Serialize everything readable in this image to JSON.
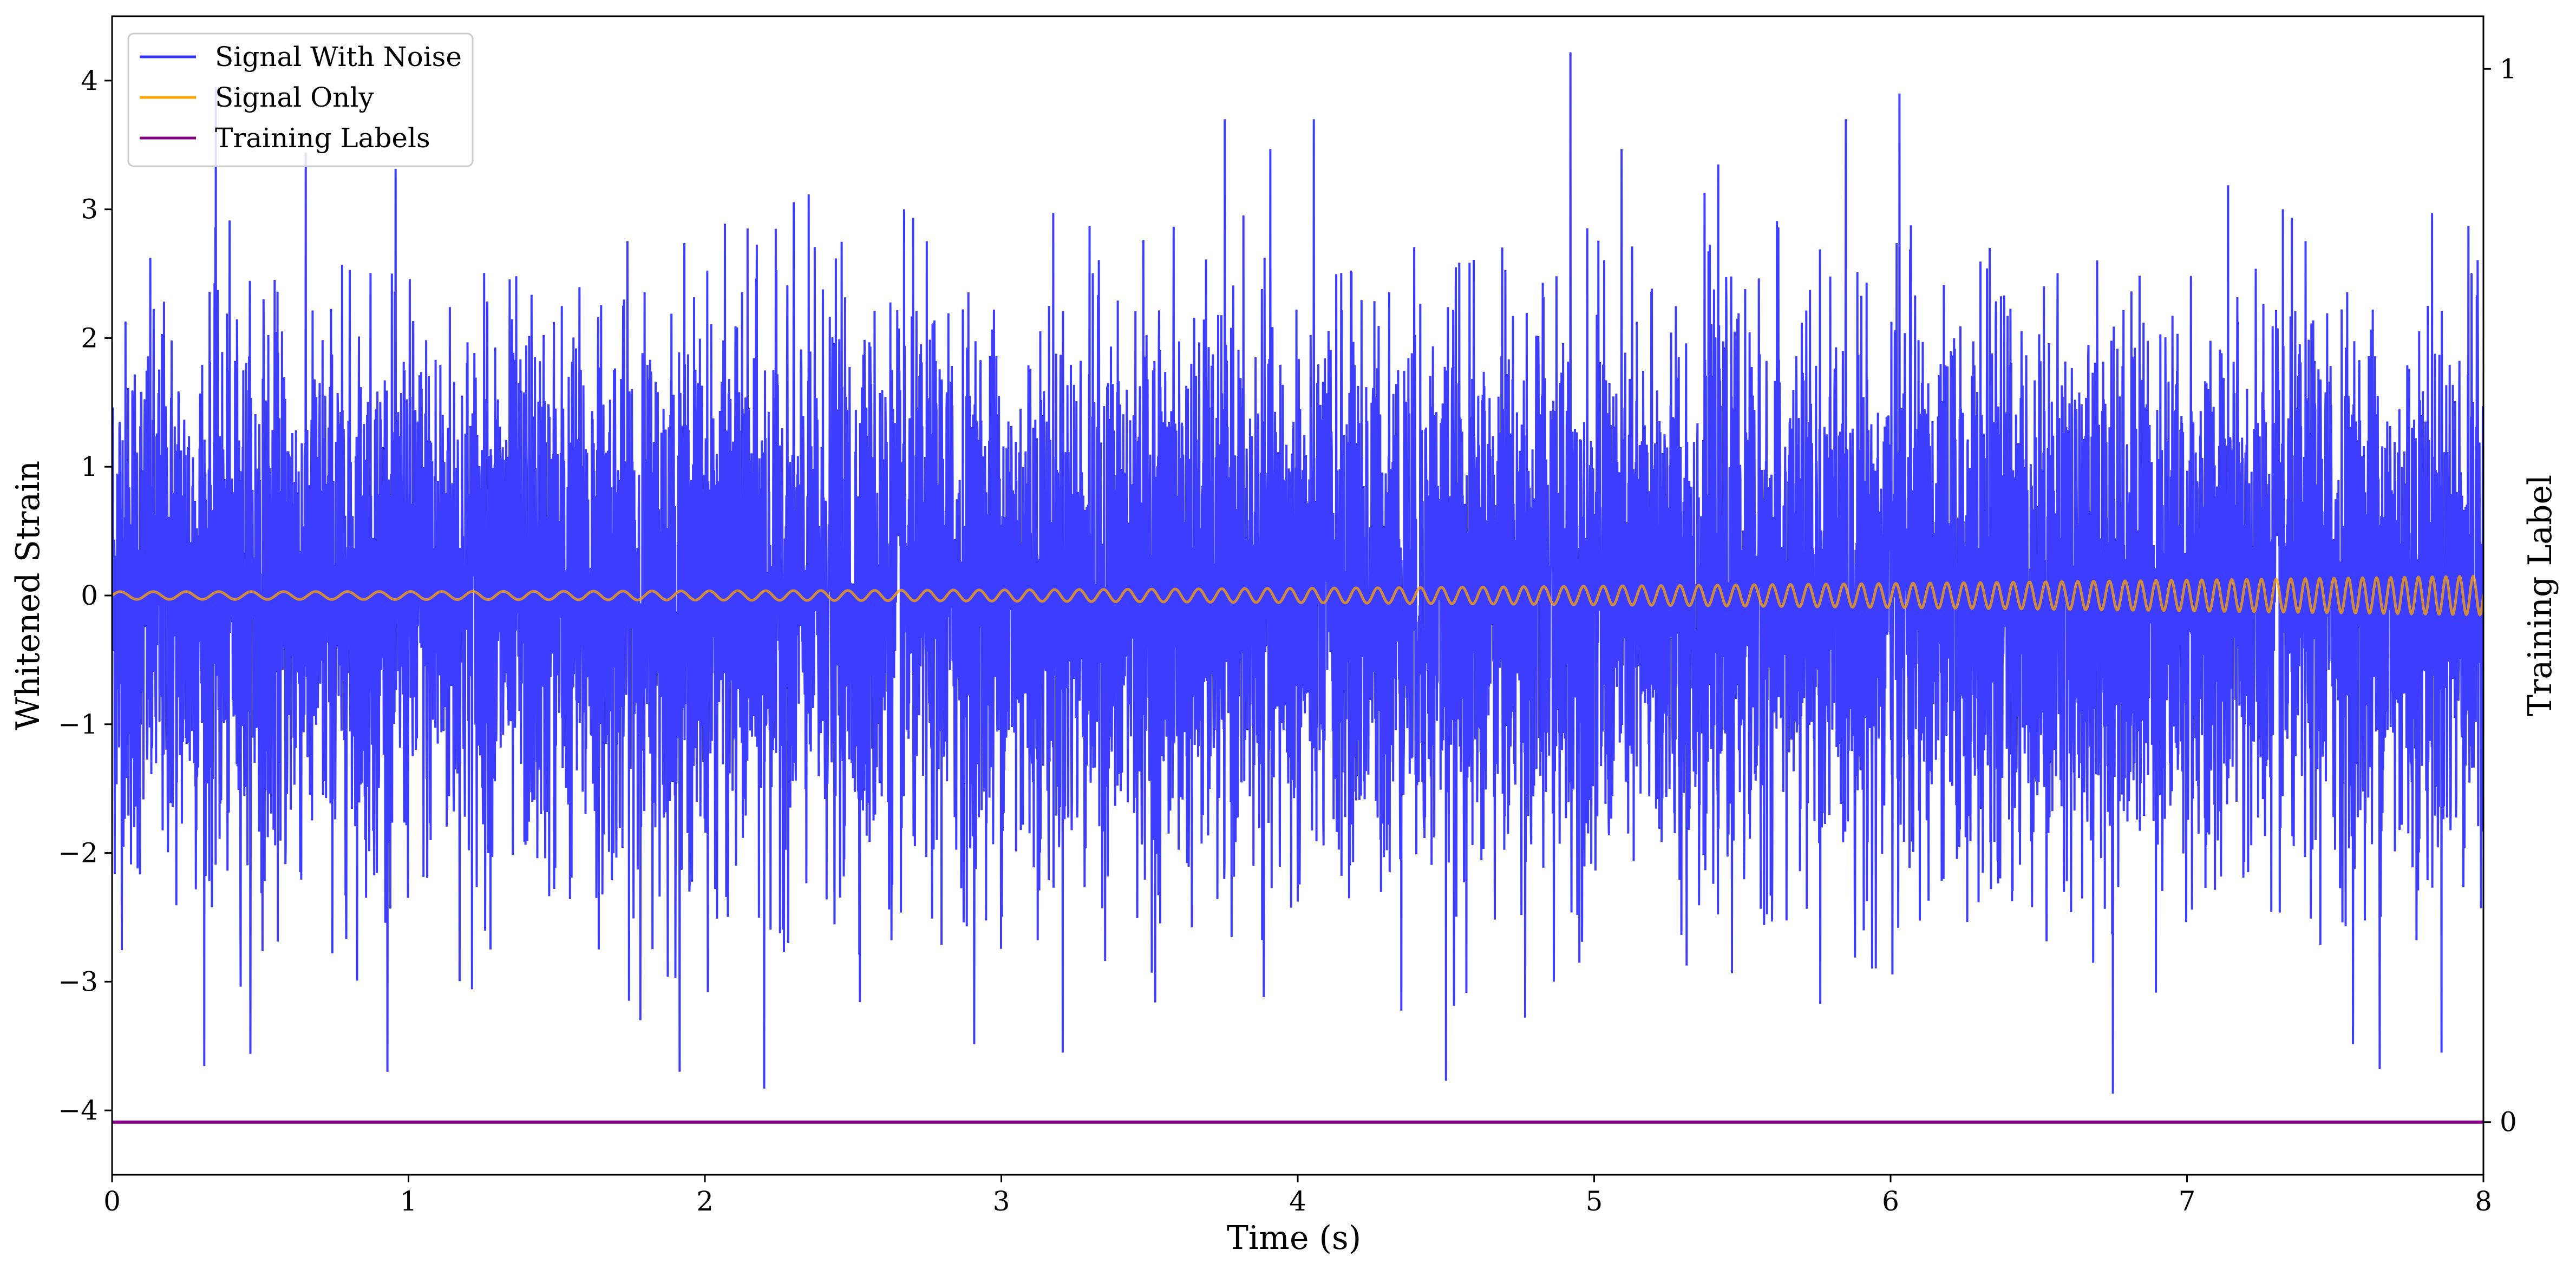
{
  "chart_data": {
    "type": "line",
    "title": "",
    "xlabel": "Time (s)",
    "ylabel": "Whitened Strain",
    "y2label": "Training Label",
    "xlim": [
      0,
      8
    ],
    "ylim": [
      -4.5,
      4.5
    ],
    "y2lim": [
      -0.05,
      1.05
    ],
    "x_ticks": [
      0,
      1,
      2,
      3,
      4,
      5,
      6,
      7,
      8
    ],
    "x_tick_labels": [
      "0",
      "1",
      "2",
      "3",
      "4",
      "5",
      "6",
      "7",
      "8"
    ],
    "y_ticks": [
      -4,
      -3,
      -2,
      -1,
      0,
      1,
      2,
      3,
      4
    ],
    "y_tick_labels": [
      "−4",
      "−3",
      "−2",
      "−1",
      "0",
      "1",
      "2",
      "3",
      "4"
    ],
    "y2_ticks": [
      0,
      1
    ],
    "y2_tick_labels": [
      "0",
      "1"
    ],
    "grid": false,
    "legend_position": "top-left",
    "legend": [
      "Signal With Noise",
      "Signal Only",
      "Training Labels"
    ],
    "series": [
      {
        "name": "Signal With Noise",
        "color": "#3333ff",
        "axis": "left",
        "description_values": "Gaussian-like whitened noise, approx. standard deviation 1, peaks between -3.85 and 4.2",
        "notable_extrema": [
          {
            "x": 0.35,
            "y": 3.95
          },
          {
            "x": 2.2,
            "y": -3.83
          },
          {
            "x": 4.5,
            "y": -3.77
          },
          {
            "x": 4.92,
            "y": 4.22
          },
          {
            "x": 6.03,
            "y": 3.9
          },
          {
            "x": 6.75,
            "y": -3.87
          },
          {
            "x": 7.65,
            "y": -3.68
          }
        ]
      },
      {
        "name": "Signal Only",
        "color": "#ffa500",
        "axis": "left",
        "description_values": "Chirp waveform centered on 0, amplitude growing from about 0.03 at t=0 to about 0.15 at t=8 with increasing frequency",
        "amplitude_start": 0.03,
        "amplitude_end": 0.15,
        "cycles_per_second_start": 9,
        "cycles_per_second_end": 22
      },
      {
        "name": "Training Labels",
        "color": "#800080",
        "axis": "right",
        "x": [
          0,
          8
        ],
        "y": [
          0,
          0
        ]
      }
    ]
  }
}
